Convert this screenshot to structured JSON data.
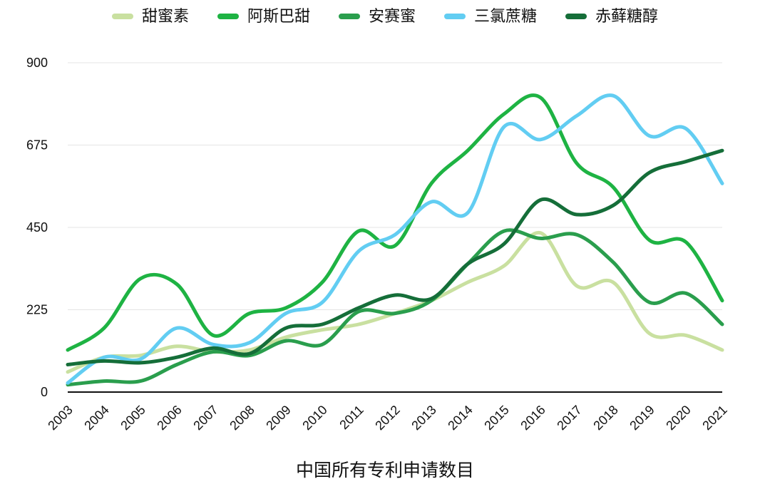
{
  "chart_data": {
    "type": "line",
    "title": "中国所有专利申请数目",
    "xlabel": "",
    "ylabel": "",
    "x": [
      2003,
      2004,
      2005,
      2006,
      2007,
      2008,
      2009,
      2010,
      2011,
      2012,
      2013,
      2014,
      2015,
      2016,
      2017,
      2018,
      2019,
      2020,
      2021
    ],
    "ylim": [
      0,
      900
    ],
    "yticks": [
      0,
      225,
      450,
      675,
      900
    ],
    "grid": "horizontal",
    "legend_position": "top",
    "axis_color": "#111111",
    "grid_color": "#e4e4e4",
    "series": [
      {
        "name": "甜蜜素",
        "color": "#c9e0a0",
        "values": [
          55,
          95,
          100,
          125,
          110,
          115,
          150,
          170,
          185,
          215,
          250,
          300,
          345,
          435,
          290,
          300,
          160,
          155,
          115
        ]
      },
      {
        "name": "阿斯巴甜",
        "color": "#1eb343",
        "values": [
          115,
          175,
          310,
          295,
          155,
          215,
          230,
          300,
          440,
          400,
          570,
          660,
          760,
          805,
          625,
          560,
          415,
          410,
          250
        ]
      },
      {
        "name": "安赛蜜",
        "color": "#2a9e4d",
        "values": [
          20,
          30,
          30,
          75,
          110,
          100,
          140,
          130,
          220,
          215,
          250,
          350,
          440,
          420,
          430,
          355,
          245,
          270,
          185
        ]
      },
      {
        "name": "三氯蔗糖",
        "color": "#62cdf2",
        "values": [
          25,
          95,
          90,
          175,
          130,
          135,
          215,
          245,
          385,
          430,
          520,
          490,
          725,
          690,
          755,
          810,
          700,
          720,
          570
        ]
      },
      {
        "name": "赤藓糖醇",
        "color": "#156e39",
        "values": [
          75,
          85,
          80,
          95,
          120,
          105,
          175,
          185,
          230,
          265,
          255,
          350,
          405,
          525,
          485,
          510,
          600,
          630,
          660
        ]
      }
    ]
  }
}
